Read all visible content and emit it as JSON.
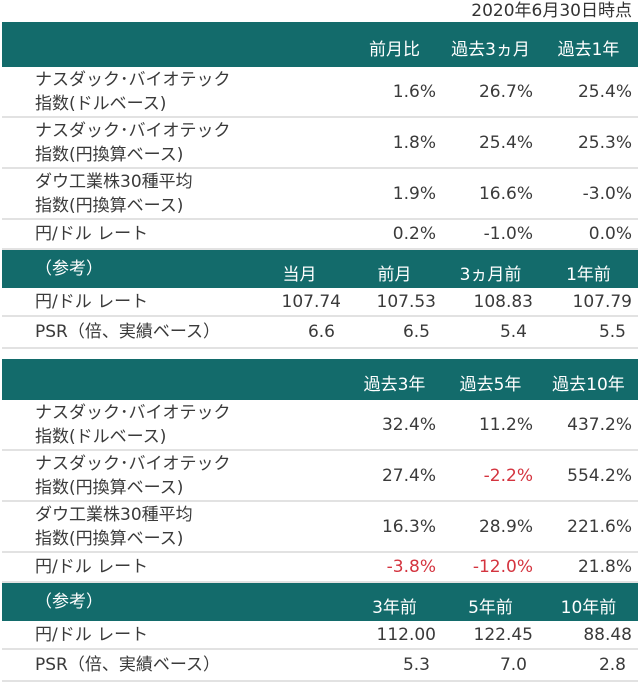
{
  "date": "2020年6月30日時点",
  "table1": {
    "headers": [
      "前月比",
      "過去3ヵ月",
      "過去1年"
    ],
    "rows": [
      {
        "label1": "ナスダック･バイオテック",
        "label2": "指数(ドルベース)",
        "values": [
          "1.6%",
          "26.7%",
          "25.4%"
        ]
      },
      {
        "label1": "ナスダック･バイオテック",
        "label2": "指数(円換算ベース)",
        "values": [
          "1.8%",
          "25.4%",
          "25.3%"
        ]
      },
      {
        "label1": "ダウ工業株30種平均",
        "label2": "指数(円換算ベース)",
        "values": [
          "1.9%",
          "16.6%",
          "-3.0%"
        ]
      },
      {
        "label1": "円/ドル レート",
        "values": [
          "0.2%",
          "-1.0%",
          "0.0%"
        ]
      }
    ],
    "ref_label": "（参考）",
    "ref_headers": [
      "当月",
      "前月",
      "3ヵ月前",
      "1年前"
    ],
    "ref_rows": [
      {
        "label": "円/ドル レート",
        "values": [
          "107.74",
          "107.53",
          "108.83",
          "107.79"
        ]
      },
      {
        "label": "PSR（倍、実績ベース）",
        "values": [
          "6.6",
          "6.5",
          "5.4",
          "5.5"
        ]
      }
    ]
  },
  "table2": {
    "headers": [
      "過去3年",
      "過去5年",
      "過去10年"
    ],
    "rows": [
      {
        "label1": "ナスダック･バイオテック",
        "label2": "指数(ドルベース)",
        "values": [
          "32.4%",
          "11.2%",
          "437.2%"
        ]
      },
      {
        "label1": "ナスダック･バイオテック",
        "label2": "指数(円換算ベース)",
        "values": [
          "27.4%",
          "-2.2%",
          "554.2%"
        ]
      },
      {
        "label1": "ダウ工業株30種平均",
        "label2": "指数(円換算ベース)",
        "values": [
          "16.3%",
          "28.9%",
          "221.6%"
        ]
      },
      {
        "label1": "円/ドル レート",
        "values": [
          "-3.8%",
          "-12.0%",
          "21.8%"
        ]
      }
    ],
    "ref_label": "（参考）",
    "ref_headers": [
      "3年前",
      "5年前",
      "10年前"
    ],
    "ref_rows": [
      {
        "label": "円/ドル レート",
        "values": [
          "112.00",
          "122.45",
          "88.48"
        ]
      },
      {
        "label": "PSR（倍、実績ベース）",
        "values": [
          "5.3",
          "7.0",
          "2.8"
        ]
      }
    ]
  },
  "colors": {
    "header_bg": "#136b6b",
    "negative": "#d4343f"
  }
}
